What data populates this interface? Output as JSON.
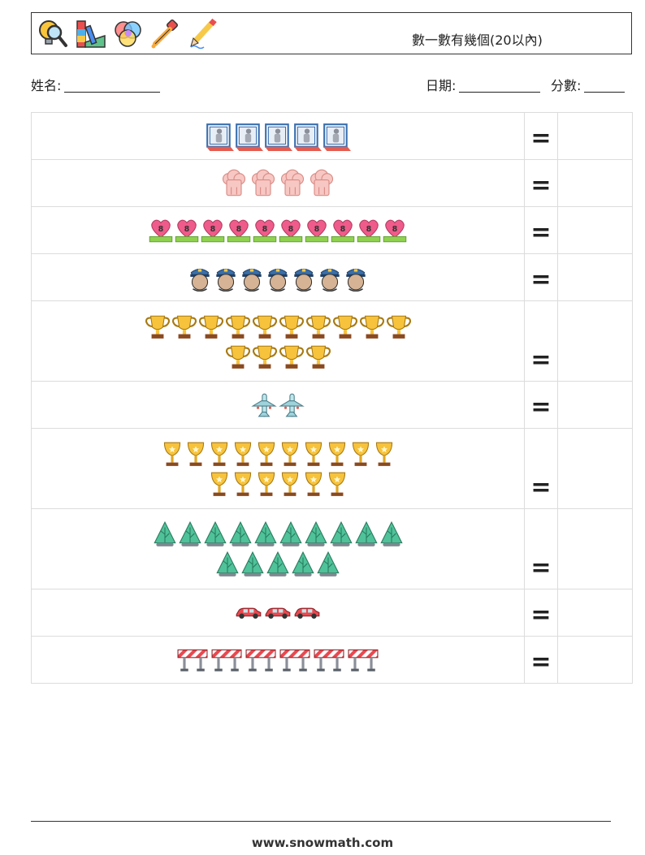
{
  "header": {
    "title": "數一數有幾個(20以內)",
    "icons": [
      "magnifier-bulb-icon",
      "color-swatch-ruler-icon",
      "rgb-circles-icon",
      "eyedropper-icon",
      "pencil-icon"
    ]
  },
  "info": {
    "name_label": "姓名:",
    "date_label": "日期:",
    "score_label": "分數:"
  },
  "rows": [
    {
      "icon": "elevator-icon",
      "count": 5,
      "equals": "="
    },
    {
      "icon": "chef-hat-icon",
      "count": 4,
      "equals": "="
    },
    {
      "icon": "heart-badge-icon",
      "count": 10,
      "equals": "="
    },
    {
      "icon": "police-officer-icon",
      "count": 7,
      "equals": "="
    },
    {
      "icon": "trophy-cup-icon",
      "count": 14,
      "equals": "="
    },
    {
      "icon": "airplane-icon",
      "count": 2,
      "equals": "="
    },
    {
      "icon": "goblet-trophy-icon",
      "count": 16,
      "equals": "="
    },
    {
      "icon": "tree-icon",
      "count": 15,
      "equals": "="
    },
    {
      "icon": "car-icon",
      "count": 3,
      "equals": "="
    },
    {
      "icon": "road-barrier-icon",
      "count": 6,
      "equals": "="
    }
  ],
  "footer": {
    "website": "www.snowmath.com"
  }
}
